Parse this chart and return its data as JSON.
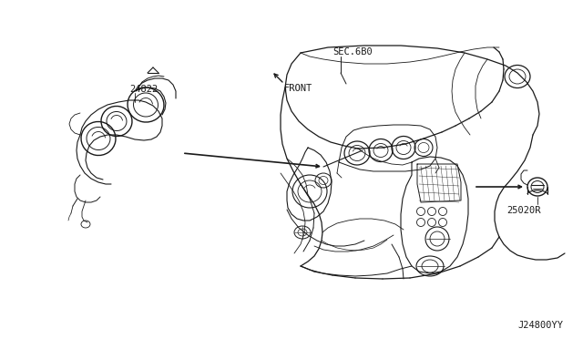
{
  "background_color": "#ffffff",
  "fig_width": 6.4,
  "fig_height": 3.72,
  "dpi": 100,
  "labels": {
    "part1": "24822",
    "part2": "25020R",
    "sec": "SEC.6B0",
    "front": "FRONT",
    "drawing_id": "J24800YY"
  },
  "line_color": "#1a1a1a",
  "font_size": 7.5
}
